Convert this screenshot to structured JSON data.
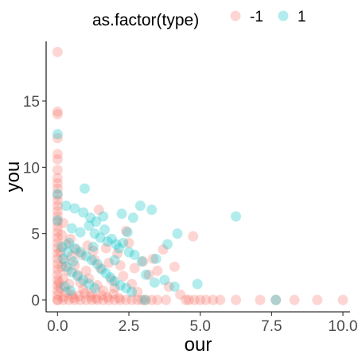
{
  "chart_data": {
    "type": "scatter",
    "xlabel": "our",
    "ylabel": "you",
    "xlim": [
      -0.4,
      10.25
    ],
    "ylim": [
      -0.9,
      19.5
    ],
    "x_ticks": [
      0,
      2.5,
      5,
      7.5,
      10
    ],
    "x_tick_labels": [
      "0.0",
      "2.5",
      "5.0",
      "7.5",
      "10.0"
    ],
    "y_ticks": [
      0,
      5,
      10,
      15
    ],
    "y_tick_labels": [
      "0",
      "5",
      "10",
      "15"
    ],
    "grid": false,
    "legend": {
      "title": "as.factor(type)",
      "position": "top"
    },
    "point_alpha": 0.3,
    "series": [
      {
        "name": "-1",
        "color": "#F8766D",
        "points": [
          [
            0,
            18.7
          ],
          [
            0,
            14.2
          ],
          [
            0,
            14.0
          ],
          [
            0,
            12.2
          ],
          [
            0,
            11.0
          ],
          [
            0,
            10.6
          ],
          [
            0,
            9.8
          ],
          [
            0,
            9.2
          ],
          [
            0,
            8.8
          ],
          [
            0,
            8.4
          ],
          [
            0,
            7.9
          ],
          [
            0,
            7.5
          ],
          [
            0,
            7.1
          ],
          [
            0,
            6.7
          ],
          [
            0,
            6.3
          ],
          [
            0,
            5.9
          ],
          [
            0,
            5.5
          ],
          [
            0,
            5.1
          ],
          [
            0,
            4.7
          ],
          [
            0,
            4.3
          ],
          [
            0,
            3.9
          ],
          [
            0,
            3.5
          ],
          [
            0,
            3.1
          ],
          [
            0,
            2.7
          ],
          [
            0,
            2.3
          ],
          [
            0,
            1.9
          ],
          [
            0,
            1.5
          ],
          [
            0,
            1.1
          ],
          [
            0,
            0.7
          ],
          [
            0,
            0.35
          ],
          [
            0,
            0
          ],
          [
            0.2,
            5.8
          ],
          [
            0.15,
            4.9
          ],
          [
            0.3,
            4.2
          ],
          [
            0.1,
            3.6
          ],
          [
            0.25,
            2.9
          ],
          [
            0.35,
            2.2
          ],
          [
            0.2,
            1.6
          ],
          [
            0.4,
            1.2
          ],
          [
            0.1,
            0.9
          ],
          [
            0.3,
            0.6
          ],
          [
            0.5,
            0.4
          ],
          [
            0.2,
            0.2
          ],
          [
            0.6,
            2.6
          ],
          [
            0.7,
            1.9
          ],
          [
            0.5,
            3.3
          ],
          [
            0.8,
            1.3
          ],
          [
            0.9,
            0.8
          ],
          [
            1.0,
            2.2
          ],
          [
            1.1,
            1.6
          ],
          [
            1.2,
            0.5
          ],
          [
            1.3,
            3.0
          ],
          [
            1.4,
            1.1
          ],
          [
            1.5,
            2.4
          ],
          [
            1.6,
            0.7
          ],
          [
            0.45,
            4.6
          ],
          [
            0.65,
            3.8
          ],
          [
            0.85,
            3.4
          ],
          [
            1.05,
            4.1
          ],
          [
            1.25,
            3.7
          ],
          [
            1.45,
            6.8
          ],
          [
            1.7,
            3.9
          ],
          [
            1.8,
            2.8
          ],
          [
            1.9,
            1.5
          ],
          [
            2.0,
            0.9
          ],
          [
            2.1,
            3.5
          ],
          [
            2.2,
            2.6
          ],
          [
            2.3,
            1.8
          ],
          [
            2.4,
            5.2
          ],
          [
            2.5,
            4.3
          ],
          [
            2.6,
            1.2
          ],
          [
            2.7,
            2.4
          ],
          [
            2.8,
            0.6
          ],
          [
            3.0,
            2.9
          ],
          [
            3.2,
            1.9
          ],
          [
            3.35,
            3.1
          ],
          [
            3.5,
            2.2
          ],
          [
            3.7,
            3.8
          ],
          [
            3.9,
            1.0
          ],
          [
            4.1,
            2.5
          ],
          [
            4.3,
            0.4
          ],
          [
            4.75,
            4.8
          ],
          [
            0.15,
            2.5
          ],
          [
            0.05,
            1.3
          ],
          [
            0.55,
            0.15
          ],
          [
            0.75,
            0.3
          ],
          [
            0.95,
            0.5
          ],
          [
            1.15,
            0.25
          ],
          [
            1.35,
            0.1
          ],
          [
            1.55,
            0.35
          ],
          [
            1.75,
            0.2
          ],
          [
            1.95,
            0.45
          ],
          [
            2.15,
            0.15
          ],
          [
            0,
            0
          ],
          [
            0.2,
            0
          ],
          [
            0.4,
            0
          ],
          [
            0.6,
            0
          ],
          [
            0.8,
            0
          ],
          [
            1.0,
            0
          ],
          [
            1.2,
            0
          ],
          [
            1.4,
            0
          ],
          [
            1.6,
            0
          ],
          [
            1.8,
            0
          ],
          [
            2.0,
            0
          ],
          [
            2.2,
            0
          ],
          [
            2.4,
            0
          ],
          [
            2.6,
            0
          ],
          [
            2.8,
            0
          ],
          [
            2.95,
            0
          ],
          [
            3.1,
            0
          ],
          [
            3.3,
            0
          ],
          [
            3.5,
            0
          ],
          [
            3.8,
            0
          ],
          [
            4.5,
            0
          ],
          [
            4.6,
            0
          ],
          [
            4.8,
            0
          ],
          [
            5.0,
            0
          ],
          [
            5.2,
            0
          ],
          [
            5.45,
            0
          ],
          [
            5.7,
            0
          ],
          [
            6.25,
            0
          ],
          [
            7.1,
            0
          ],
          [
            7.65,
            0
          ],
          [
            8.3,
            0
          ],
          [
            9.1,
            0
          ],
          [
            10.0,
            0
          ]
        ]
      },
      {
        "name": "1",
        "color": "#00BFC4",
        "points": [
          [
            0,
            12.5
          ],
          [
            0,
            8.0
          ],
          [
            0,
            6.0
          ],
          [
            0.95,
            8.4
          ],
          [
            0.3,
            7.1
          ],
          [
            0.6,
            6.9
          ],
          [
            0.9,
            6.6
          ],
          [
            1.15,
            6.2
          ],
          [
            1.35,
            5.9
          ],
          [
            1.6,
            6.3
          ],
          [
            2.25,
            6.5
          ],
          [
            2.65,
            6.2
          ],
          [
            2.9,
            7.1
          ],
          [
            3.3,
            6.8
          ],
          [
            6.25,
            6.3
          ],
          [
            4.2,
            5.0
          ],
          [
            3.85,
            4.2
          ],
          [
            3.45,
            3.1
          ],
          [
            0.5,
            5.4
          ],
          [
            0.8,
            5.1
          ],
          [
            1.1,
            5.6
          ],
          [
            1.3,
            5.0
          ],
          [
            1.5,
            4.7
          ],
          [
            1.75,
            4.4
          ],
          [
            1.9,
            4.6
          ],
          [
            2.05,
            4.2
          ],
          [
            2.15,
            3.9
          ],
          [
            2.3,
            4.3
          ],
          [
            2.5,
            3.6
          ],
          [
            2.7,
            3.4
          ],
          [
            2.95,
            2.9
          ],
          [
            3.1,
            1.9
          ],
          [
            3.4,
            1.3
          ],
          [
            3.75,
            1.5
          ],
          [
            4.1,
            1.0
          ],
          [
            4.9,
            1.2
          ],
          [
            0.4,
            4.3
          ],
          [
            0.6,
            3.9
          ],
          [
            0.8,
            3.6
          ],
          [
            1.0,
            3.3
          ],
          [
            1.2,
            3.0
          ],
          [
            1.4,
            2.7
          ],
          [
            1.55,
            2.3
          ],
          [
            1.7,
            2.0
          ],
          [
            1.85,
            1.7
          ],
          [
            2.0,
            1.4
          ],
          [
            2.2,
            1.1
          ],
          [
            2.4,
            0.9
          ],
          [
            2.6,
            0.6
          ],
          [
            0.3,
            2.5
          ],
          [
            0.5,
            2.1
          ],
          [
            0.7,
            1.8
          ],
          [
            0.9,
            1.5
          ],
          [
            1.1,
            1.2
          ],
          [
            1.3,
            0.9
          ],
          [
            0.25,
            1.0
          ],
          [
            0.45,
            0.7
          ],
          [
            0.2,
            3.1
          ],
          [
            0.35,
            3.6
          ],
          [
            0.15,
            4.0
          ],
          [
            1.65,
            5.3
          ],
          [
            2.45,
            5.1
          ],
          [
            2.0,
            3.0
          ],
          [
            1.25,
            4.0
          ],
          [
            0.55,
            2.9
          ],
          [
            3.05,
            0
          ],
          [
            7.65,
            0
          ]
        ]
      }
    ]
  }
}
